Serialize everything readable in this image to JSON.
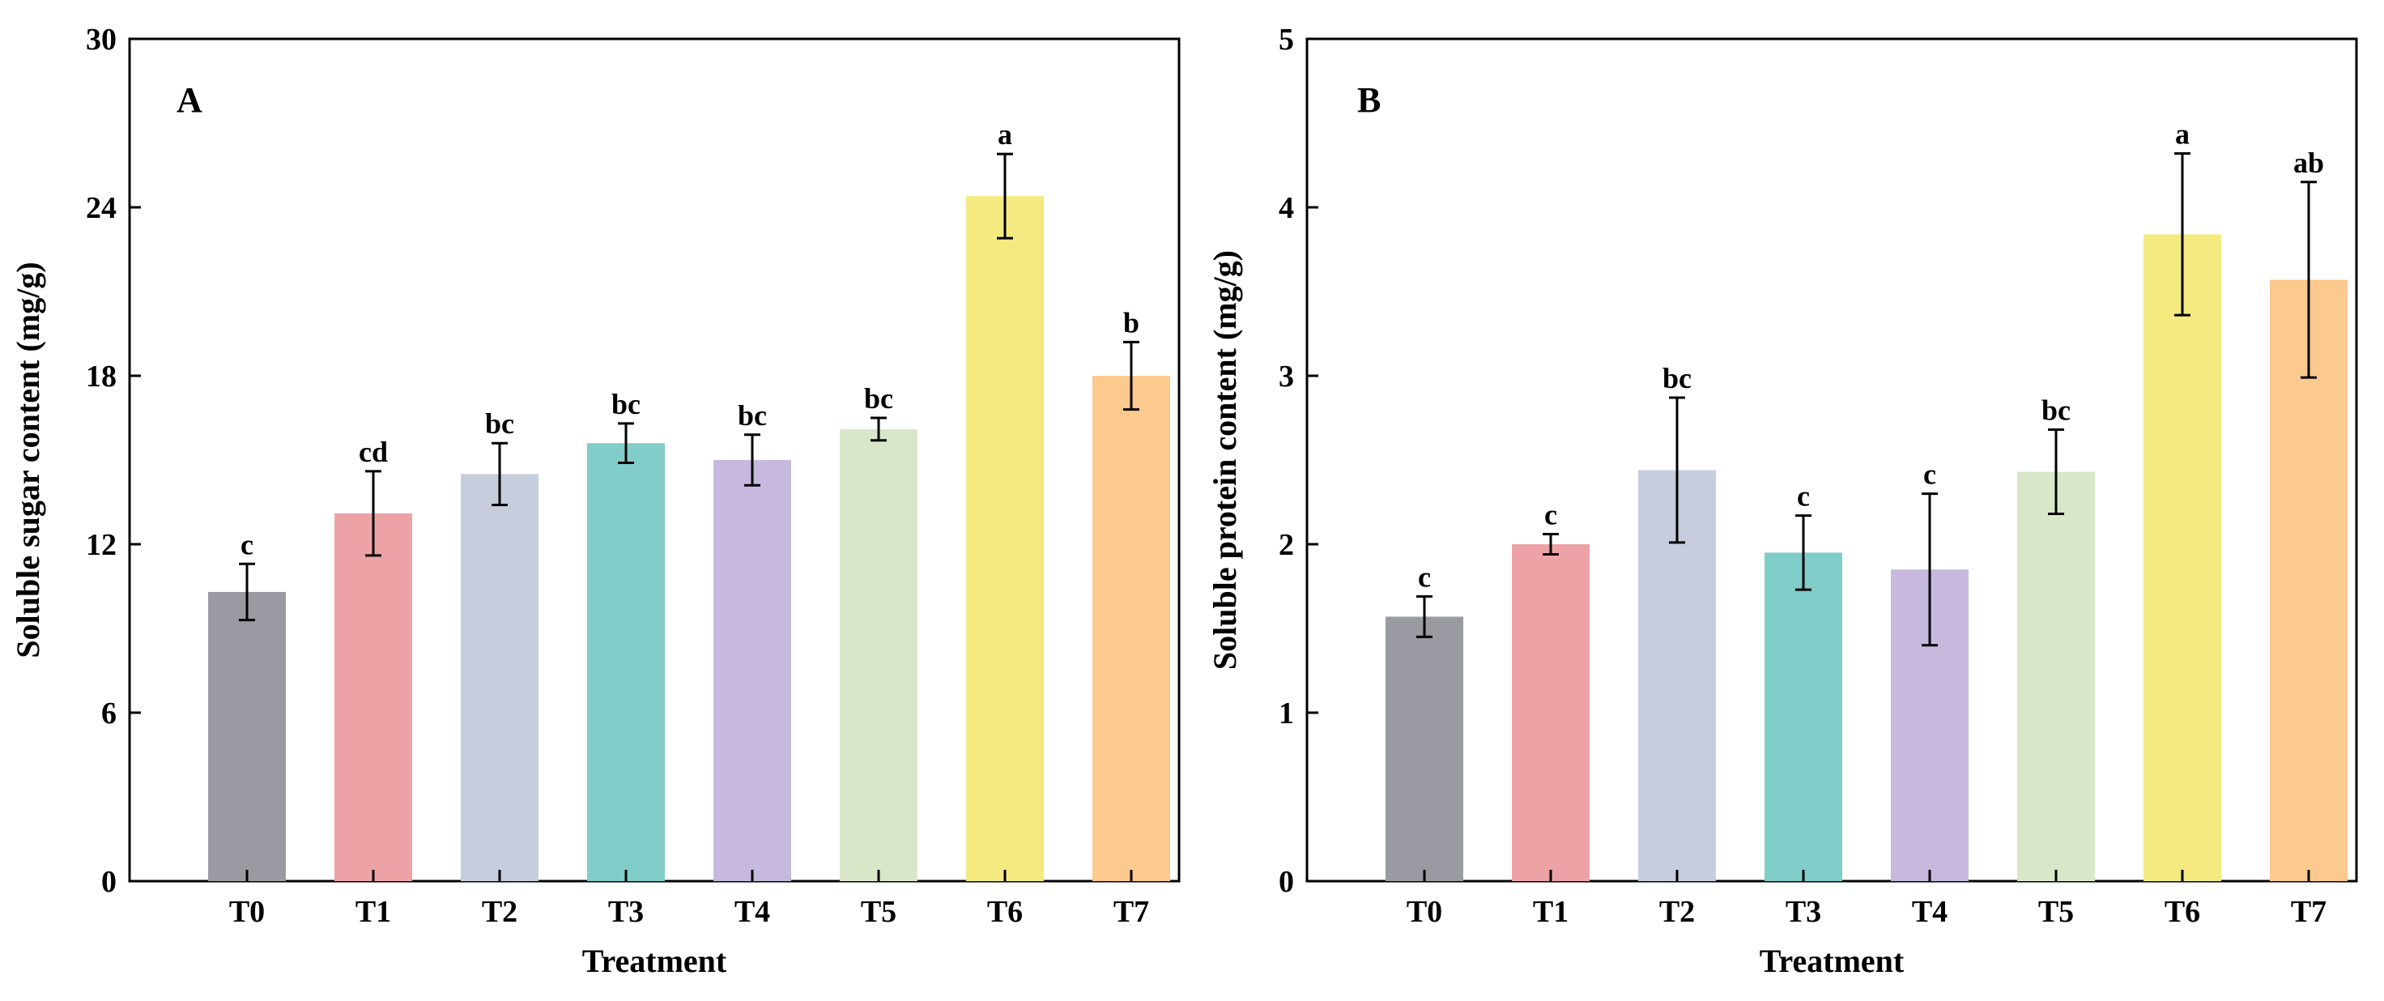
{
  "chart_data": [
    {
      "type": "bar",
      "panel_label": "A",
      "categories": [
        "T0",
        "T1",
        "T2",
        "T3",
        "T4",
        "T5",
        "T6",
        "T7"
      ],
      "values": [
        10.3,
        13.1,
        14.5,
        15.6,
        15.0,
        16.1,
        24.4,
        18.0
      ],
      "errors": [
        1.0,
        1.5,
        1.1,
        0.7,
        0.9,
        0.4,
        1.5,
        1.2
      ],
      "significance": [
        "c",
        "cd",
        "bc",
        "bc",
        "bc",
        "bc",
        "a",
        "b"
      ],
      "colors": [
        "#9a9ba2",
        "#eda3a6",
        "#c6cedd",
        "#80cdca",
        "#c6b9dd",
        "#d9e7c9",
        "#f4ea80",
        "#fcc98e"
      ],
      "xlabel": "Treatment",
      "ylabel": "Soluble sugar content (mg/g)",
      "ylim": [
        0,
        30
      ],
      "yticks": [
        "0",
        "6",
        "12",
        "18",
        "24",
        "30"
      ],
      "grid": false,
      "legend": "none"
    },
    {
      "type": "bar",
      "panel_label": "B",
      "categories": [
        "T0",
        "T1",
        "T2",
        "T3",
        "T4",
        "T5",
        "T6",
        "T7"
      ],
      "values": [
        1.57,
        2.0,
        2.44,
        1.95,
        1.85,
        2.43,
        3.84,
        3.57
      ],
      "errors": [
        0.12,
        0.06,
        0.43,
        0.22,
        0.45,
        0.25,
        0.48,
        0.58
      ],
      "significance": [
        "c",
        "c",
        "bc",
        "c",
        "c",
        "bc",
        "a",
        "ab"
      ],
      "colors": [
        "#9a9ba2",
        "#eda3a6",
        "#c6cedd",
        "#80cdca",
        "#c6b9dd",
        "#d9e7c9",
        "#f4ea80",
        "#fcc98e"
      ],
      "xlabel": "Treatment",
      "ylabel": "Soluble protein content (mg/g)",
      "ylim": [
        0,
        5
      ],
      "yticks": [
        "0",
        "1",
        "2",
        "3",
        "4",
        "5"
      ],
      "grid": false,
      "legend": "none"
    }
  ]
}
